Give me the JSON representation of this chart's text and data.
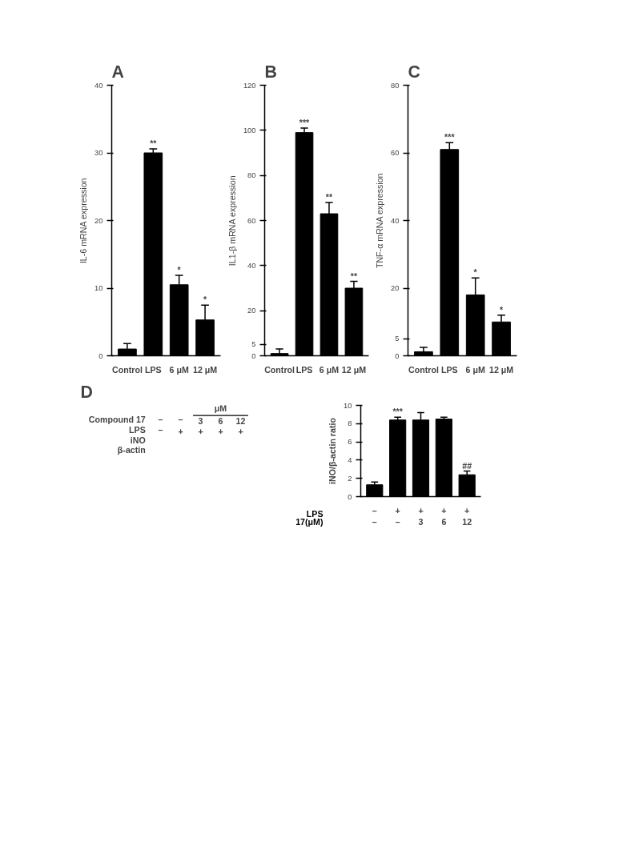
{
  "chart_data": [
    {
      "type": "bar",
      "title": "A",
      "ylabel": "IL-6 mRNA expression",
      "categories": [
        "Control",
        "LPS",
        "6 μM",
        "12 μM"
      ],
      "values": [
        1.0,
        30.0,
        10.5,
        5.3
      ],
      "errors": [
        0.8,
        0.6,
        1.4,
        2.2
      ],
      "color": "#000000",
      "ylim": [
        0,
        40
      ],
      "yticks": [
        0,
        10,
        20,
        30,
        40
      ],
      "grid": false,
      "annotations": [
        {
          "text": "**",
          "x": "LPS",
          "y": 30.6
        },
        {
          "text": "*",
          "x": "6 μM",
          "y": 11.9
        },
        {
          "text": "*",
          "x": "12 μM",
          "y": 7.5
        }
      ]
    },
    {
      "type": "bar",
      "title": "B",
      "ylabel": "IL1-β mRNA expression",
      "categories": [
        "Control",
        "LPS",
        "6 μM",
        "12 μM"
      ],
      "values": [
        1,
        99,
        63,
        30
      ],
      "errors": [
        2,
        2,
        5,
        3
      ],
      "color": "#000000",
      "ylim": [
        0,
        120
      ],
      "yticks": [
        0,
        5,
        20,
        40,
        60,
        80,
        100,
        120
      ],
      "grid": false,
      "annotations": [
        {
          "text": "***",
          "x": "LPS",
          "y": 101
        },
        {
          "text": "**",
          "x": "6 μM",
          "y": 68
        },
        {
          "text": "**",
          "x": "12 μM",
          "y": 33
        }
      ]
    },
    {
      "type": "bar",
      "title": "C",
      "ylabel": "TNF-α mRNA expression",
      "categories": [
        "Control",
        "LPS",
        "6 μM",
        "12 μM"
      ],
      "values": [
        1.2,
        61,
        18,
        10
      ],
      "errors": [
        1.3,
        2,
        5,
        2
      ],
      "color": "#000000",
      "ylim": [
        0,
        80
      ],
      "yticks": [
        0,
        5,
        20,
        40,
        60,
        80
      ],
      "grid": false,
      "annotations": [
        {
          "text": "***",
          "x": "LPS",
          "y": 63
        },
        {
          "text": "*",
          "x": "6 μM",
          "y": 23
        },
        {
          "text": "*",
          "x": "12 μM",
          "y": 12
        }
      ]
    },
    {
      "type": "other",
      "title": "D",
      "annotations": [
        "μM",
        "Compound 17",
        "–",
        "–",
        "3",
        "6",
        "12",
        "LPS",
        "–",
        "+",
        "+",
        "+",
        "+",
        "iNO",
        "β-actin"
      ]
    },
    {
      "type": "bar",
      "ylabel": "iNO/β-actin ratio",
      "categories": [
        "–\n–",
        "+\n–",
        "+\n3",
        "+\n6",
        "+\n12"
      ],
      "values": [
        1.3,
        8.4,
        8.4,
        8.5,
        2.4
      ],
      "errors": [
        0.3,
        0.3,
        0.8,
        0.2,
        0.4
      ],
      "color": "#000000",
      "ylim": [
        0,
        10
      ],
      "yticks": [
        0,
        2,
        4,
        6,
        8,
        10
      ],
      "grid": false,
      "annotations": [
        {
          "text": "***",
          "x": "+\n–",
          "y": 8.7
        },
        {
          "text": "##",
          "x": "+\n12",
          "y": 2.8
        },
        "LPS",
        "17(μM)"
      ]
    }
  ]
}
